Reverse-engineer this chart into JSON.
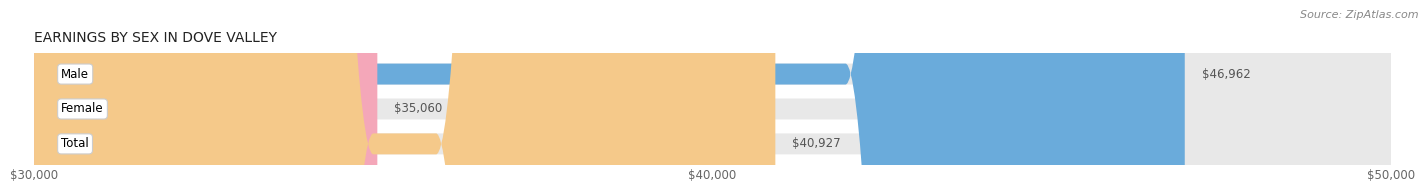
{
  "title": "EARNINGS BY SEX IN DOVE VALLEY",
  "source": "Source: ZipAtlas.com",
  "categories": [
    "Male",
    "Female",
    "Total"
  ],
  "values": [
    46962,
    35060,
    40927
  ],
  "bar_colors": [
    "#6aabdb",
    "#f4a7b9",
    "#f5c98a"
  ],
  "bar_bg_color": "#e8e8e8",
  "value_labels": [
    "$46,962",
    "$35,060",
    "$40,927"
  ],
  "x_min": 30000,
  "x_max": 50000,
  "x_ticks": [
    30000,
    40000,
    50000
  ],
  "x_tick_labels": [
    "$30,000",
    "$40,000",
    "$50,000"
  ],
  "title_fontsize": 10,
  "source_fontsize": 8,
  "bar_label_fontsize": 8.5,
  "value_fontsize": 8.5,
  "tick_fontsize": 8.5,
  "fig_width": 14.06,
  "fig_height": 1.96,
  "background_color": "#ffffff"
}
